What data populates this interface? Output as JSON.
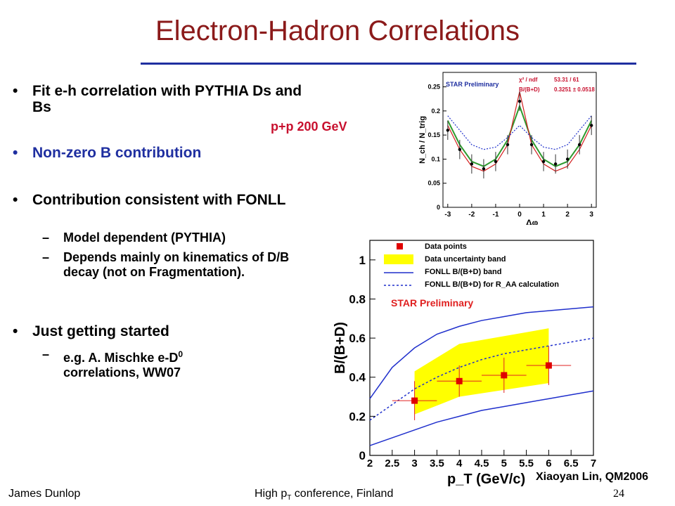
{
  "slide": {
    "title": "Electron-Hadron Correlations",
    "pp_label": "p+p 200 GeV",
    "bullets": [
      {
        "text": "Fit e-h correlation with PYTHIA Ds and Bs"
      },
      {
        "text": "Non-zero B contribution"
      },
      {
        "text": "Contribution consistent with FONLL"
      },
      {
        "text": "Just getting started"
      }
    ],
    "sub_bullets": [
      "Model dependent (PYTHIA)",
      "Depends mainly on kinematics of D/B decay (not on Fragmentation).",
      "e.g. A. Mischke e-D",
      "correlations, WW07"
    ],
    "sub_sup": "0",
    "bullet_marker": "•",
    "dash_marker": "–",
    "footer_left": "James Dunlop",
    "footer_center_pre": "High p",
    "footer_center_sub": "T",
    "footer_center_post": " conference, Finland",
    "footer_page": "24",
    "credit": "Xiaoyan Lin, QM2006",
    "colors": {
      "title": "#8b1a1a",
      "rule": "#1f2fa0",
      "accent_blue": "#1f2fa0",
      "pp_red": "#c8102e"
    }
  },
  "chart_data": [
    {
      "type": "line",
      "label": "STAR Preliminary",
      "fit_box": {
        "chi2_label": "χ² / ndf",
        "chi2_value": "53.31 / 61",
        "param_label": "B/(B+D)",
        "param_value": "0.3251 ± 0.0518"
      },
      "xlabel": "Δφ",
      "ylabel": "N_ch / N_trig",
      "xlim": [
        -3.2,
        3.2
      ],
      "ylim": [
        0,
        0.28
      ],
      "x_ticks": [
        "-3",
        "-2",
        "-1",
        "0",
        "1",
        "2",
        "3"
      ],
      "y_ticks": [
        "0",
        "0.05",
        "0.1",
        "0.15",
        "0.2",
        "0.25"
      ],
      "x": [
        -3,
        -2.5,
        -2,
        -1.5,
        -1,
        -0.5,
        0,
        0.5,
        1,
        1.5,
        2,
        2.5,
        3
      ],
      "series": [
        {
          "values": [
            0.18,
            0.13,
            0.095,
            0.085,
            0.1,
            0.14,
            0.21,
            0.14,
            0.1,
            0.085,
            0.095,
            0.13,
            0.18
          ]
        },
        {
          "values": [
            0.17,
            0.12,
            0.085,
            0.075,
            0.09,
            0.13,
            0.24,
            0.13,
            0.09,
            0.075,
            0.085,
            0.12,
            0.17
          ]
        },
        {
          "values": [
            0.19,
            0.16,
            0.13,
            0.12,
            0.125,
            0.145,
            0.17,
            0.145,
            0.125,
            0.12,
            0.13,
            0.16,
            0.19
          ]
        }
      ],
      "data_points": [
        0.16,
        0.12,
        0.09,
        0.08,
        0.095,
        0.13,
        0.22,
        0.13,
        0.095,
        0.09,
        0.1,
        0.13,
        0.17
      ]
    },
    {
      "type": "scatter",
      "ylabel": "B/(B+D)",
      "xlabel": "p_T (GeV/c)",
      "xlim": [
        2,
        7
      ],
      "ylim": [
        0,
        1.1
      ],
      "x_ticks": [
        "2",
        "2.5",
        "3",
        "3.5",
        "4",
        "4.5",
        "5",
        "5.5",
        "6",
        "6.5",
        "7"
      ],
      "y_ticks": [
        "0",
        "0.2",
        "0.4",
        "0.6",
        "0.8",
        "1"
      ],
      "legend": [
        "Data points",
        "Data uncertainty band",
        "FONLL B/(B+D) band",
        "FONLL B/(B+D) for R_AA calculation"
      ],
      "label": "STAR Preliminary",
      "data_points": {
        "x": [
          3,
          4,
          5,
          6
        ],
        "y": [
          0.28,
          0.38,
          0.41,
          0.46
        ],
        "xerr": [
          0.5,
          0.5,
          0.5,
          0.5
        ],
        "yerr": [
          0.1,
          0.08,
          0.09,
          0.1
        ]
      },
      "uncertainty_band": {
        "x": [
          3,
          4,
          6
        ],
        "lower": [
          0.21,
          0.3,
          0.37
        ],
        "upper": [
          0.43,
          0.57,
          0.65
        ]
      },
      "fonll_band": {
        "x": [
          2,
          2.5,
          3,
          3.5,
          4,
          4.5,
          5,
          5.5,
          6,
          6.5,
          7
        ],
        "lower": [
          0.05,
          0.09,
          0.13,
          0.17,
          0.2,
          0.23,
          0.25,
          0.27,
          0.29,
          0.31,
          0.33
        ],
        "upper": [
          0.29,
          0.45,
          0.55,
          0.62,
          0.66,
          0.69,
          0.71,
          0.73,
          0.74,
          0.75,
          0.76
        ]
      },
      "fonll_raa": {
        "x": [
          2,
          2.5,
          3,
          3.5,
          4,
          4.5,
          5,
          5.5,
          6,
          6.5,
          7
        ],
        "y": [
          0.18,
          0.26,
          0.34,
          0.4,
          0.45,
          0.49,
          0.52,
          0.54,
          0.56,
          0.58,
          0.6
        ]
      }
    }
  ]
}
